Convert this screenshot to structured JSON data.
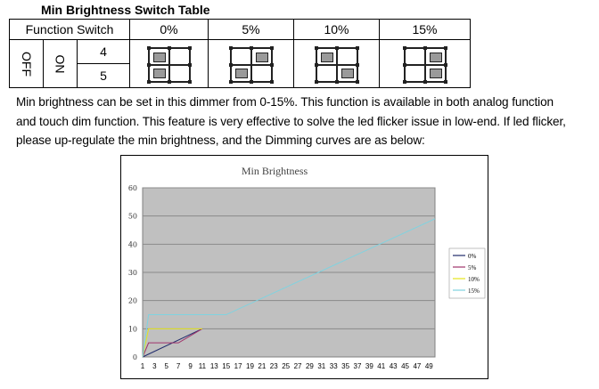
{
  "table_title": "Min Brightness Switch Table",
  "table": {
    "header_function": "Function Switch",
    "columns": [
      "0%",
      "5%",
      "10%",
      "15%"
    ],
    "off_label": "OFF",
    "on_label": "ON",
    "switch_rows": [
      "4",
      "5"
    ],
    "switch_states": [
      {
        "top": "left",
        "bottom": "left"
      },
      {
        "top": "right",
        "bottom": "left"
      },
      {
        "top": "left",
        "bottom": "right"
      },
      {
        "top": "right",
        "bottom": "right"
      }
    ]
  },
  "description": [
    "Min brightness can be set in this dimmer from 0-15%. This function is available in both analog function",
    "and touch dim function. This feature is very effective to solve the led flicker issue in low-end. If led flicker,",
    "please up-regulate the min brightness, and the Dimming curves are as below:"
  ],
  "chart_data": {
    "type": "line",
    "title": "Min Brightness",
    "xlabel": "",
    "ylabel": "",
    "x_ticks": [
      "1",
      "3",
      "5",
      "7",
      "9",
      "11",
      "13",
      "15",
      "17",
      "19",
      "21",
      "23",
      "25",
      "27",
      "29",
      "31",
      "33",
      "35",
      "37",
      "39",
      "41",
      "43",
      "45",
      "47",
      "49"
    ],
    "y_ticks": [
      "0",
      "10",
      "20",
      "30",
      "40",
      "50",
      "60"
    ],
    "ylim": [
      0,
      60
    ],
    "xlim": [
      1,
      50
    ],
    "grid": true,
    "legend_position": "right",
    "plot_background": "#c0c0c0",
    "series": [
      {
        "name": "0%",
        "color": "#1f2a6b",
        "points": [
          [
            1,
            0
          ],
          [
            11,
            10
          ]
        ]
      },
      {
        "name": "5%",
        "color": "#a0336b",
        "points": [
          [
            1,
            0
          ],
          [
            2,
            5
          ],
          [
            7,
            5
          ],
          [
            11,
            10
          ]
        ]
      },
      {
        "name": "10%",
        "color": "#e6e61a",
        "points": [
          [
            1,
            0
          ],
          [
            2,
            10
          ],
          [
            11,
            10
          ]
        ]
      },
      {
        "name": "15%",
        "color": "#7fd3e0",
        "points": [
          [
            1,
            0
          ],
          [
            2,
            15
          ],
          [
            15,
            15
          ],
          [
            50,
            49
          ]
        ]
      }
    ]
  }
}
